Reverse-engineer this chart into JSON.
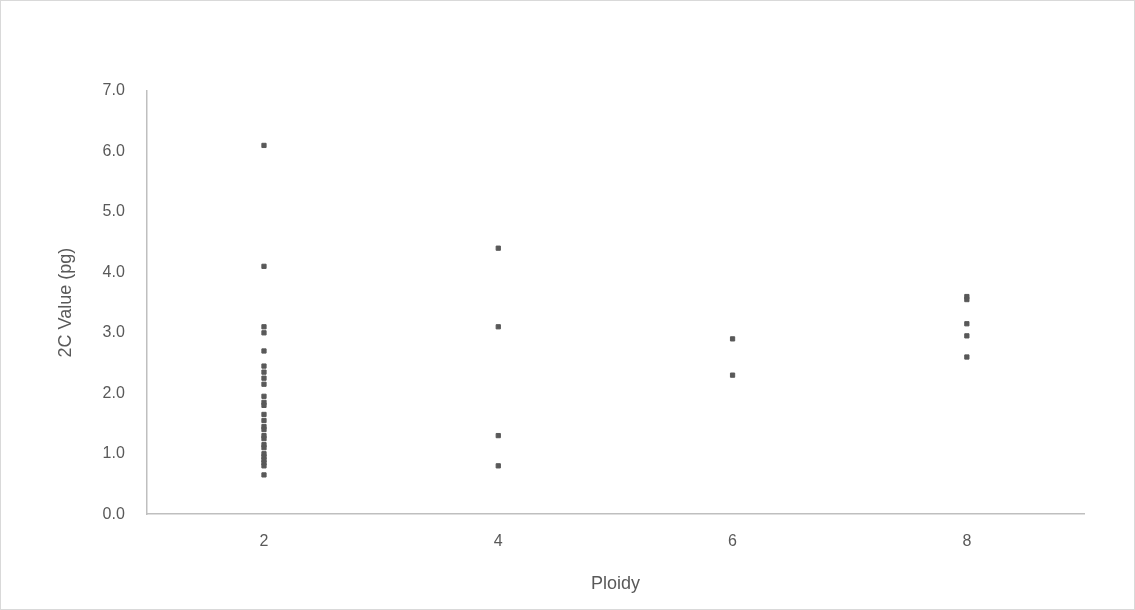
{
  "chart_data": {
    "type": "scatter",
    "xlabel": "Ploidy",
    "ylabel": "2C Value (pg)",
    "categories": [
      "2",
      "4",
      "6",
      "8"
    ],
    "series": [
      {
        "color": "#595959",
        "x": [
          "2",
          "2",
          "2",
          "2",
          "2",
          "2",
          "2",
          "2",
          "2",
          "2",
          "2",
          "2",
          "2",
          "2",
          "2",
          "2",
          "2",
          "2",
          "2",
          "2",
          "2",
          "2",
          "2",
          "2",
          "2",
          "2",
          "4",
          "4",
          "4",
          "4",
          "6",
          "6",
          "8",
          "8",
          "8",
          "8",
          "8"
        ],
        "values": [
          6.1,
          4.1,
          3.1,
          3.0,
          2.7,
          2.45,
          2.35,
          2.25,
          2.15,
          1.95,
          1.85,
          1.8,
          1.65,
          1.55,
          1.45,
          1.4,
          1.3,
          1.25,
          1.15,
          1.1,
          1.0,
          0.95,
          0.9,
          0.85,
          0.8,
          0.65,
          4.4,
          3.1,
          1.3,
          0.8,
          2.9,
          2.3,
          3.6,
          3.55,
          3.15,
          2.95,
          2.6
        ]
      }
    ],
    "ylim": [
      0,
      7
    ],
    "yticks": [
      {
        "value": 0,
        "label": "0.0"
      },
      {
        "value": 1,
        "label": "1.0"
      },
      {
        "value": 2,
        "label": "2.0"
      },
      {
        "value": 3,
        "label": "3.0"
      },
      {
        "value": 4,
        "label": "4.0"
      },
      {
        "value": 5,
        "label": "5.0"
      },
      {
        "value": 6,
        "label": "6.0"
      },
      {
        "value": 7,
        "label": "7.0"
      }
    ],
    "grid": false,
    "legend": false,
    "marker": "square"
  }
}
